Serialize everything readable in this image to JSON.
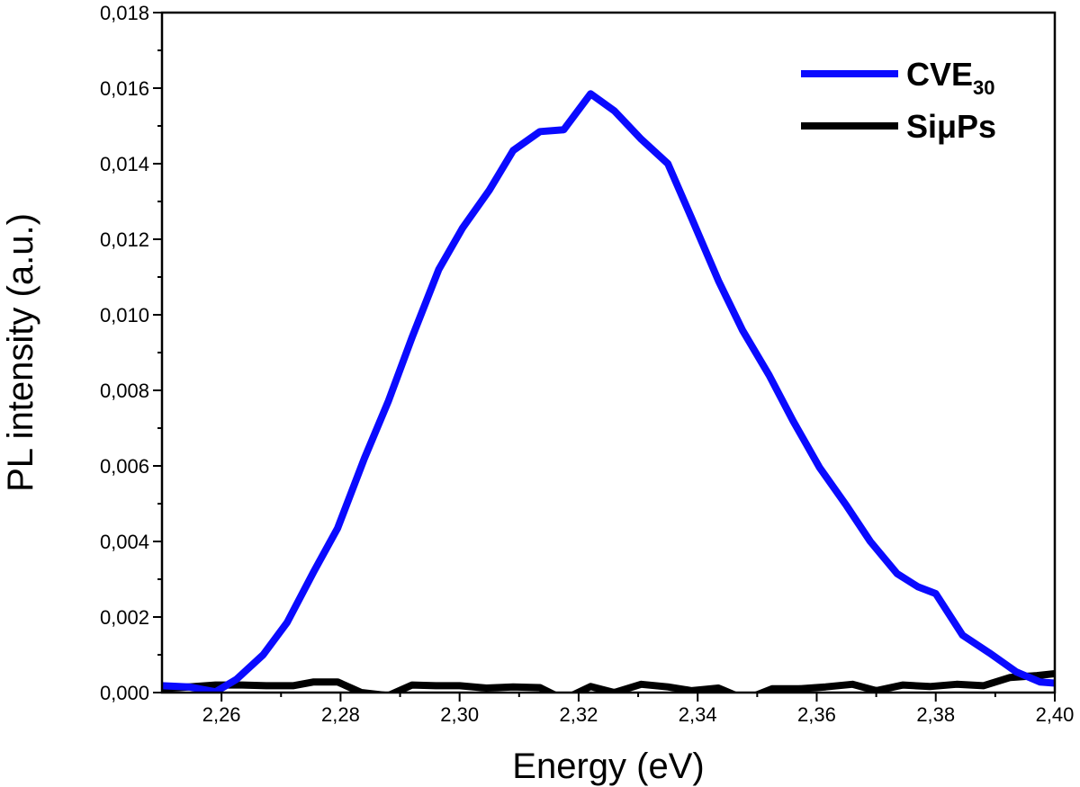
{
  "chart_data": {
    "type": "line",
    "title": "",
    "xlabel": "Energy (eV)",
    "ylabel": "PL intensity (a.u.)",
    "xlim": [
      2.25,
      2.4
    ],
    "ylim": [
      0.0,
      0.018
    ],
    "x_major_ticks": [
      2.26,
      2.28,
      2.3,
      2.32,
      2.34,
      2.36,
      2.38,
      2.4
    ],
    "x_tick_labels": [
      "2,26",
      "2,28",
      "2,30",
      "2,32",
      "2,34",
      "2,36",
      "2,38",
      "2,40"
    ],
    "y_major_ticks": [
      0.0,
      0.002,
      0.004,
      0.006,
      0.008,
      0.01,
      0.012,
      0.014,
      0.016,
      0.018
    ],
    "y_tick_labels": [
      "0,000",
      "0,002",
      "0,004",
      "0,006",
      "0,008",
      "0,010",
      "0,012",
      "0,014",
      "0,016",
      "0,018"
    ],
    "grid": false,
    "legend_position": "top-right",
    "series": [
      {
        "name": "CVE",
        "name_subscript": "30",
        "color": "#0a0aff",
        "x": [
          2.25,
          2.2545,
          2.259,
          2.2625,
          2.267,
          2.271,
          2.2755,
          2.2795,
          2.284,
          2.288,
          2.292,
          2.2965,
          2.3005,
          2.305,
          2.309,
          2.3135,
          2.3175,
          2.322,
          2.326,
          2.3305,
          2.335,
          2.339,
          2.3435,
          2.3475,
          2.352,
          2.356,
          2.3605,
          2.365,
          2.369,
          2.3735,
          2.377,
          2.38,
          2.3845,
          2.389,
          2.3935,
          2.3975,
          2.4
        ],
        "y": [
          0.00018,
          0.00015,
          2e-05,
          0.00035,
          0.001,
          0.00185,
          0.0032,
          0.00435,
          0.0062,
          0.0077,
          0.0094,
          0.0112,
          0.0123,
          0.0133,
          0.01435,
          0.01485,
          0.0149,
          0.01585,
          0.0154,
          0.01465,
          0.014,
          0.01255,
          0.0109,
          0.0096,
          0.0084,
          0.0072,
          0.00595,
          0.00495,
          0.004,
          0.00315,
          0.0028,
          0.00262,
          0.00152,
          0.00105,
          0.00055,
          0.00028,
          0.00025
        ]
      },
      {
        "name": "SiμPs",
        "color": "#000000",
        "x": [
          2.25,
          2.2545,
          2.259,
          2.2635,
          2.2675,
          2.272,
          2.2755,
          2.2795,
          2.2835,
          2.288,
          2.292,
          2.296,
          2.3,
          2.3045,
          2.309,
          2.3135,
          2.3175,
          2.322,
          2.326,
          2.3305,
          2.335,
          2.339,
          2.3435,
          2.348,
          2.3525,
          2.357,
          2.3615,
          2.366,
          2.37,
          2.3745,
          2.379,
          2.3835,
          2.388,
          2.3925,
          2.397,
          2.4
        ],
        "y": [
          0.0001,
          0.00015,
          0.0002,
          0.0002,
          0.00018,
          0.00018,
          0.00028,
          0.00028,
          0.0,
          -8e-05,
          0.0002,
          0.00018,
          0.00018,
          0.00012,
          0.00015,
          0.00013,
          -0.00018,
          0.00016,
          0.0,
          0.00022,
          0.00015,
          5e-05,
          0.00012,
          -0.00018,
          0.0001,
          0.0001,
          0.00015,
          0.00022,
          5e-05,
          0.0002,
          0.00016,
          0.00022,
          0.00018,
          0.0004,
          0.00045,
          0.0005
        ]
      }
    ]
  }
}
